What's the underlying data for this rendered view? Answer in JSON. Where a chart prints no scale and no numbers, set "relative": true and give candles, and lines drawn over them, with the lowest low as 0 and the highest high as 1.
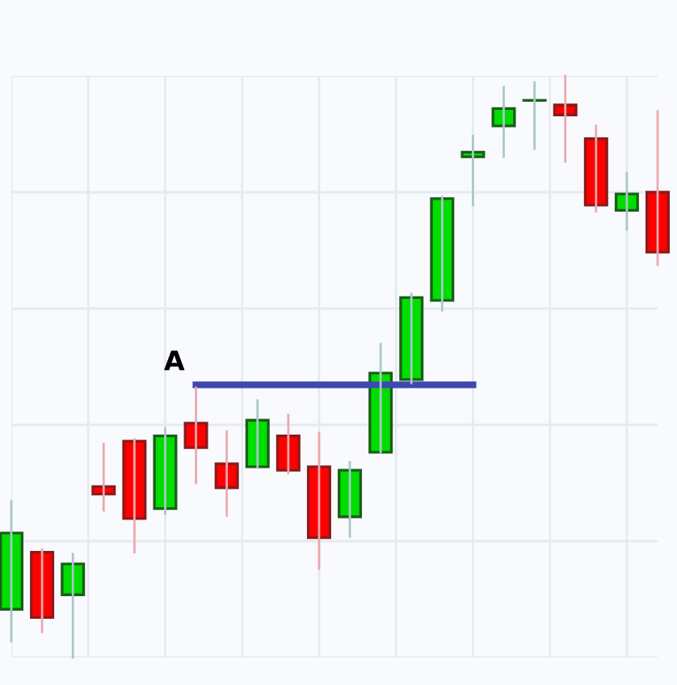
{
  "chart_data": {
    "type": "candlestick",
    "relative": true,
    "tick_labels": false,
    "grid": true,
    "categories": [
      null,
      null,
      null,
      null,
      null,
      null,
      null,
      null,
      null,
      null,
      null,
      null,
      null,
      null,
      null,
      null,
      null,
      null,
      null,
      null,
      null,
      null
    ],
    "ohlc": [
      [
        0.083,
        0.269,
        0.028,
        0.214
      ],
      [
        0.181,
        0.186,
        0.044,
        0.069
      ],
      [
        0.108,
        0.178,
        0.0,
        0.161
      ],
      [
        0.294,
        0.367,
        0.253,
        0.281
      ],
      [
        0.372,
        0.375,
        0.181,
        0.239
      ],
      [
        0.256,
        0.394,
        0.247,
        0.381
      ],
      [
        0.403,
        0.464,
        0.3,
        0.361
      ],
      [
        0.333,
        0.389,
        0.244,
        0.292
      ],
      [
        0.328,
        0.442,
        0.328,
        0.408
      ],
      [
        0.381,
        0.417,
        0.317,
        0.322
      ],
      [
        0.328,
        0.386,
        0.153,
        0.206
      ],
      [
        0.242,
        0.336,
        0.208,
        0.322
      ],
      [
        0.353,
        0.539,
        0.353,
        0.489
      ],
      [
        0.478,
        0.625,
        0.472,
        0.619
      ],
      [
        0.614,
        0.792,
        0.597,
        0.789
      ],
      [
        0.861,
        0.897,
        0.778,
        0.869
      ],
      [
        0.914,
        0.981,
        0.861,
        0.944
      ],
      [
        0.958,
        0.989,
        0.875,
        0.958
      ],
      [
        0.95,
        1.0,
        0.853,
        0.933
      ],
      [
        0.892,
        0.914,
        0.767,
        0.778
      ],
      [
        0.769,
        0.833,
        0.736,
        0.797
      ],
      [
        0.8,
        0.939,
        0.675,
        0.697
      ]
    ],
    "colors": [
      "#00dd00",
      "#ff0000",
      "#00dd00",
      "#ff0000",
      "#ff0000",
      "#00dd00",
      "#ff0000",
      "#ff0000",
      "#00dd00",
      "#ff0000",
      "#ff0000",
      "#00dd00",
      "#00dd00",
      "#00dd00",
      "#00dd00",
      "#00dd00",
      "#00dd00",
      "#1a5e1a",
      "#ff0000",
      "#ff0000",
      "#00dd00",
      "#ff0000"
    ],
    "series": [
      {
        "type": "line",
        "color": "#3f48b0",
        "values": [
          null,
          null,
          null,
          null,
          null,
          null,
          0.469,
          0.469,
          0.469,
          0.469,
          0.469,
          0.469,
          0.469,
          0.469,
          0.469,
          0.469,
          null,
          null,
          null,
          null,
          null,
          null
        ]
      }
    ],
    "annotations": [
      "A"
    ]
  }
}
